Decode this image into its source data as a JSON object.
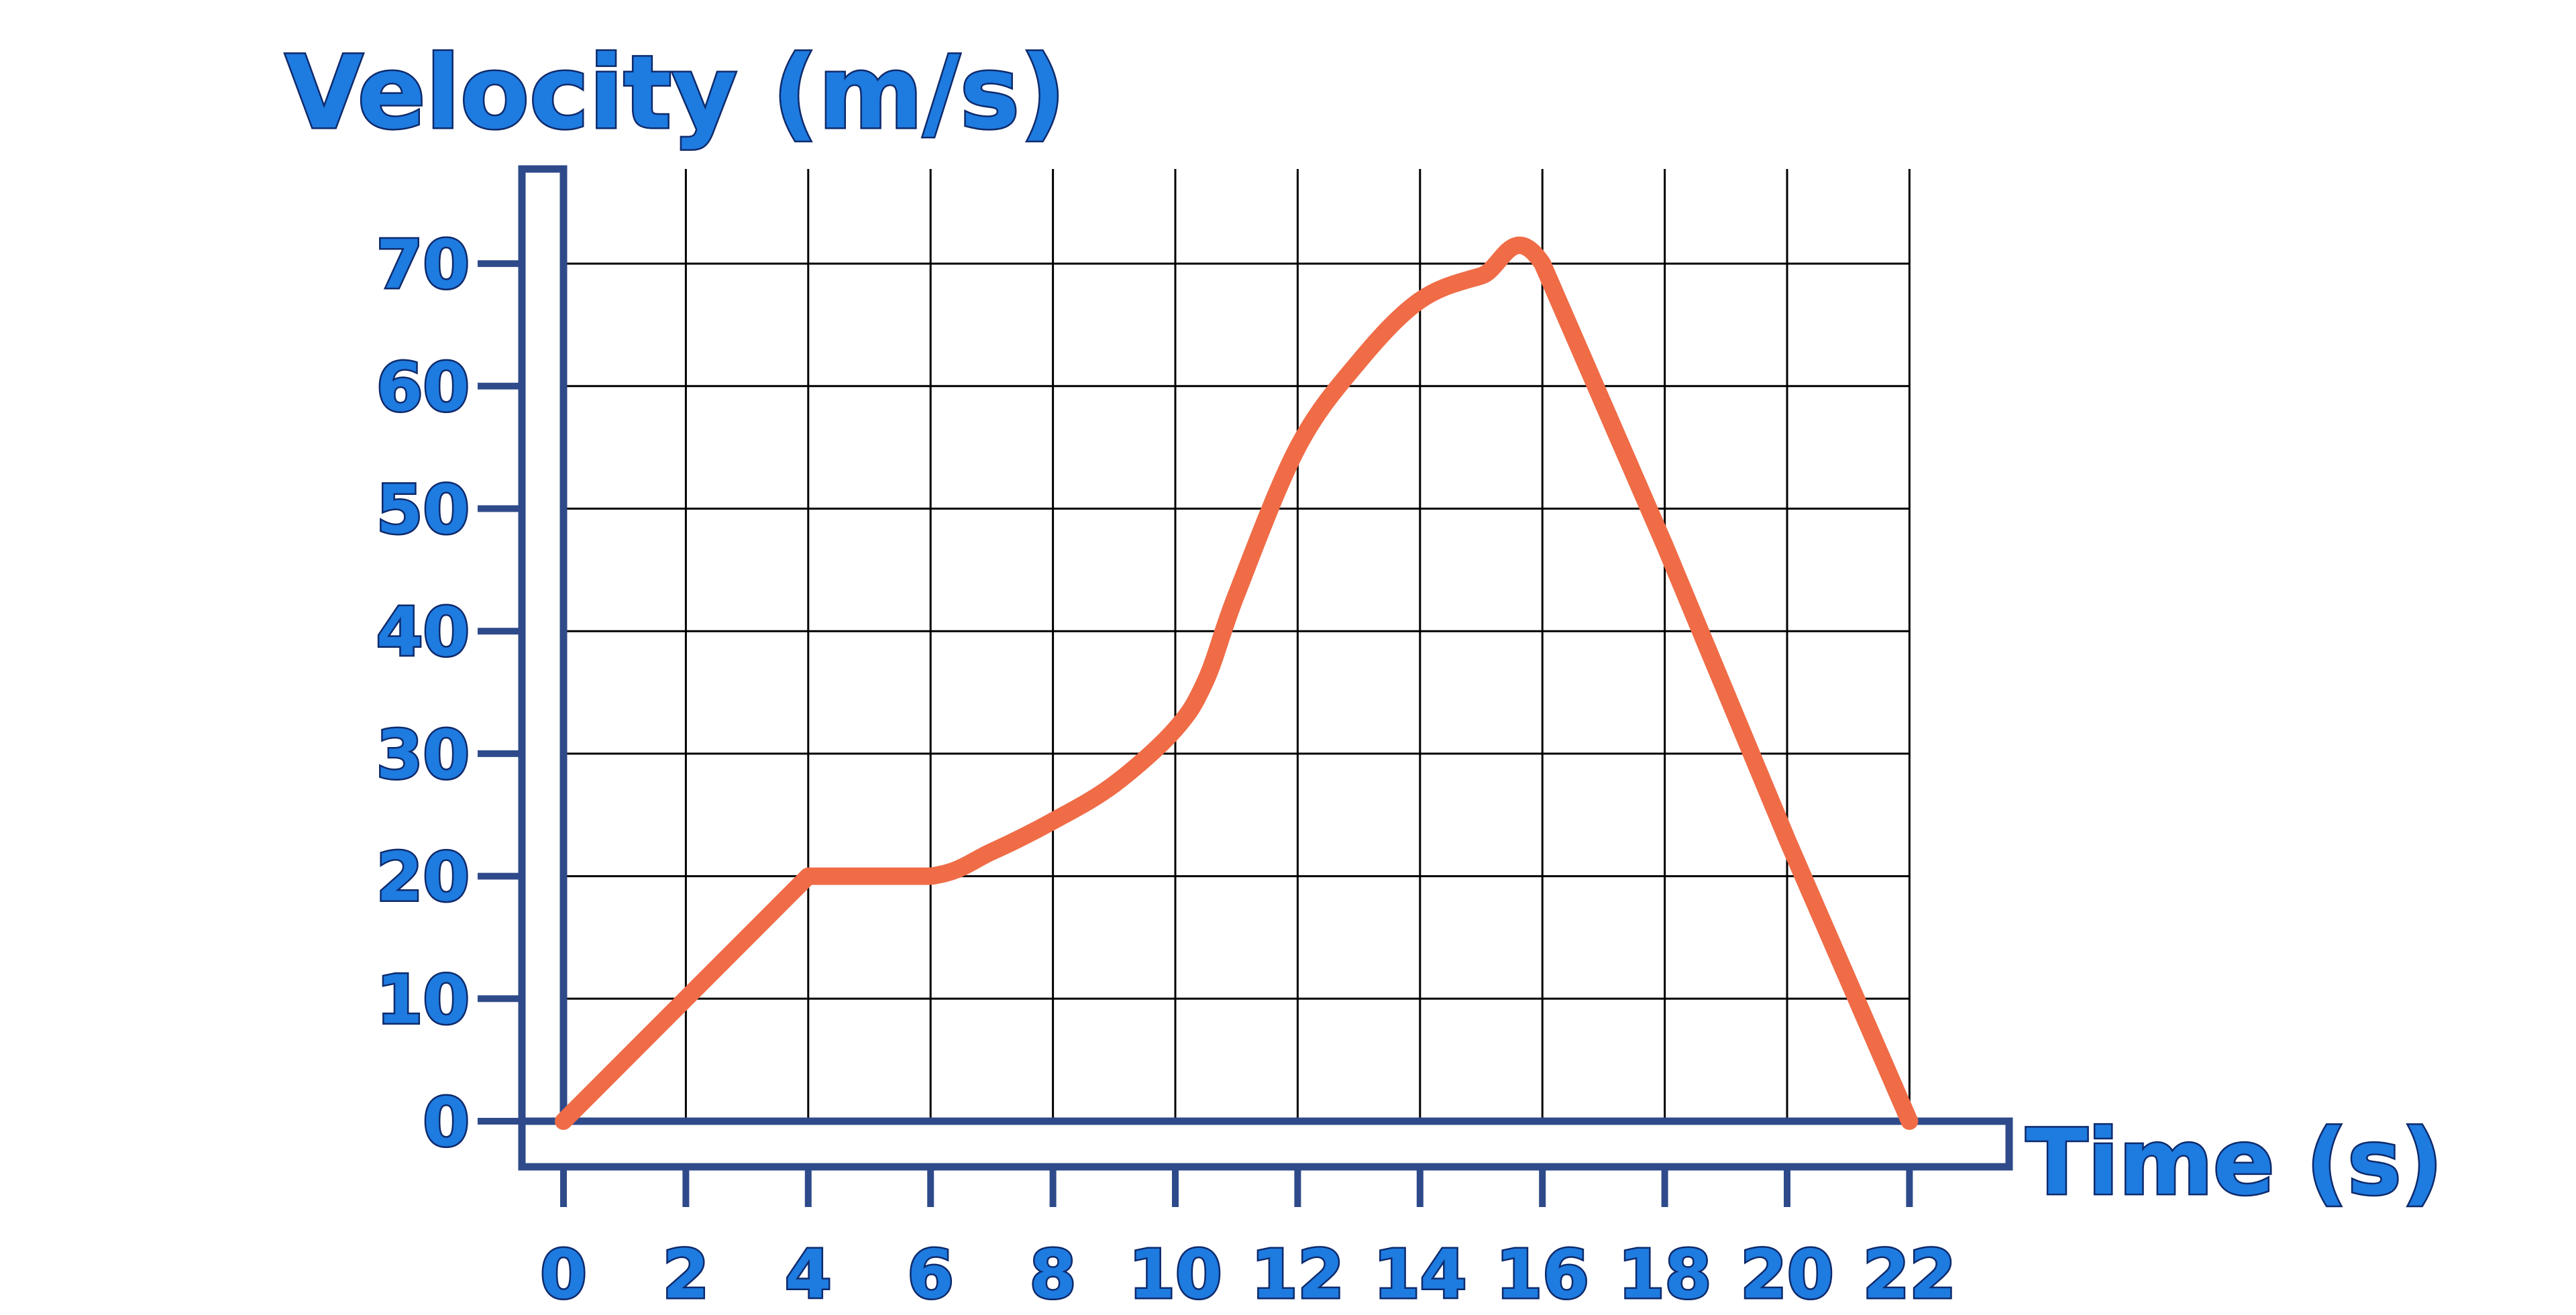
{
  "chart_data": {
    "type": "line",
    "ylabel": "Velocity (m/s)",
    "xlabel": "Time (s)",
    "x_ticks": [
      0,
      2,
      4,
      6,
      8,
      10,
      12,
      14,
      16,
      18,
      20,
      22
    ],
    "y_ticks": [
      0,
      10,
      20,
      30,
      40,
      50,
      60,
      70
    ],
    "xlim": [
      0,
      22
    ],
    "ylim": [
      0,
      70
    ],
    "grid": true,
    "colors": {
      "line": "#EF6C47",
      "axis": "#2E4A8A",
      "grid": "#000000",
      "label_fill": "#1E7BE0"
    },
    "series": [
      {
        "values_x": [
          0,
          2,
          4,
          6,
          7,
          8,
          9,
          10,
          10.5,
          11,
          12,
          13,
          14,
          15,
          16,
          18,
          20,
          22
        ],
        "values_y": [
          0,
          10,
          20,
          20,
          22,
          24.5,
          27.5,
          32,
          36,
          43,
          55,
          62,
          67,
          69,
          70,
          47,
          23,
          0
        ]
      }
    ]
  }
}
